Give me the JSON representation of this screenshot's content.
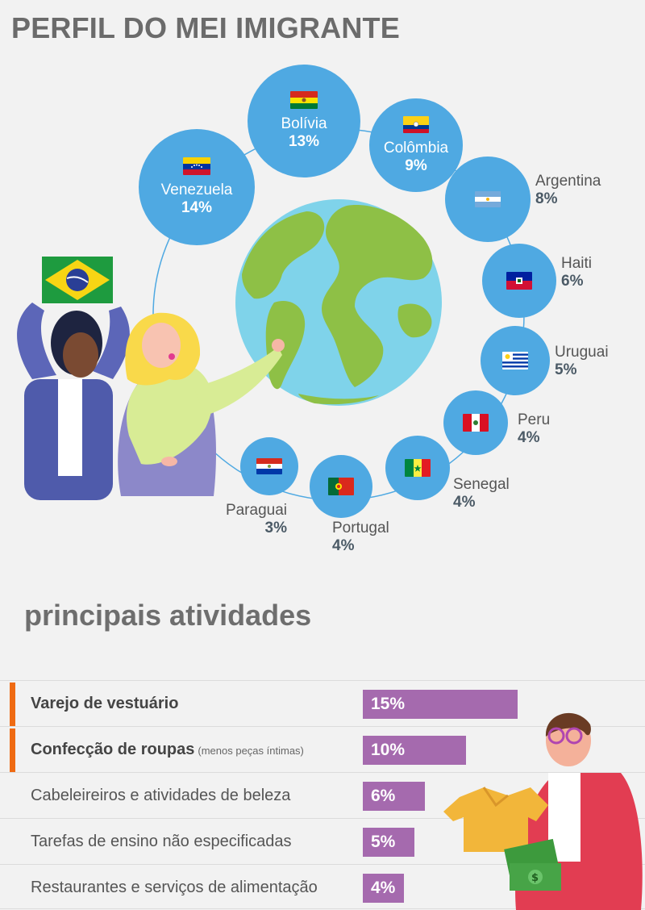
{
  "header": {
    "title": "PERFIL DO MEI IMIGRANTE"
  },
  "countries": [
    {
      "name": "Bolívia",
      "pct": "13%"
    },
    {
      "name": "Colômbia",
      "pct": "9%"
    },
    {
      "name": "Venezuela",
      "pct": "14%"
    },
    {
      "name": "Argentina",
      "pct": "8%"
    },
    {
      "name": "Haiti",
      "pct": "6%"
    },
    {
      "name": "Uruguai",
      "pct": "5%"
    },
    {
      "name": "Peru",
      "pct": "4%"
    },
    {
      "name": "Senegal",
      "pct": "4%"
    },
    {
      "name": "Portugal",
      "pct": "4%"
    },
    {
      "name": "Paraguai",
      "pct": "3%"
    }
  ],
  "activities_title": "principais atividades",
  "activities": [
    {
      "label": "Varejo de vestuário",
      "note": "",
      "pct": "15%"
    },
    {
      "label": "Confecção de roupas",
      "note": "(menos peças íntimas)",
      "pct": "10%"
    },
    {
      "label": "Cabeleireiros e atividades de beleza",
      "note": "",
      "pct": "6%"
    },
    {
      "label": "Tarefas de ensino não especificadas",
      "note": "",
      "pct": "5%"
    },
    {
      "label": "Restaurantes e serviços de alimentação",
      "note": "",
      "pct": "4%"
    }
  ],
  "chart_data": [
    {
      "type": "bubble",
      "categories": [
        "Venezuela",
        "Bolívia",
        "Colômbia",
        "Argentina",
        "Haiti",
        "Uruguai",
        "Peru",
        "Senegal",
        "Portugal",
        "Paraguai"
      ],
      "values": [
        14,
        13,
        9,
        8,
        6,
        5,
        4,
        4,
        4,
        3
      ],
      "unit": "%"
    },
    {
      "type": "bar",
      "orientation": "horizontal",
      "categories": [
        "Varejo de vestuário",
        "Confecção de roupas",
        "Cabeleireiros e atividades de beleza",
        "Tarefas de ensino não especificadas",
        "Restaurantes e serviços de alimentação"
      ],
      "values": [
        15,
        10,
        6,
        5,
        4
      ],
      "unit": "%",
      "color": "#a56aae",
      "highlight_color": "#ef6a12"
    }
  ],
  "colors": {
    "bubble": "#4fa9e2",
    "bar": "#a56aae",
    "accent": "#ef6a12",
    "globe_ocean": "#7fd3ea",
    "globe_land": "#8ec046"
  }
}
